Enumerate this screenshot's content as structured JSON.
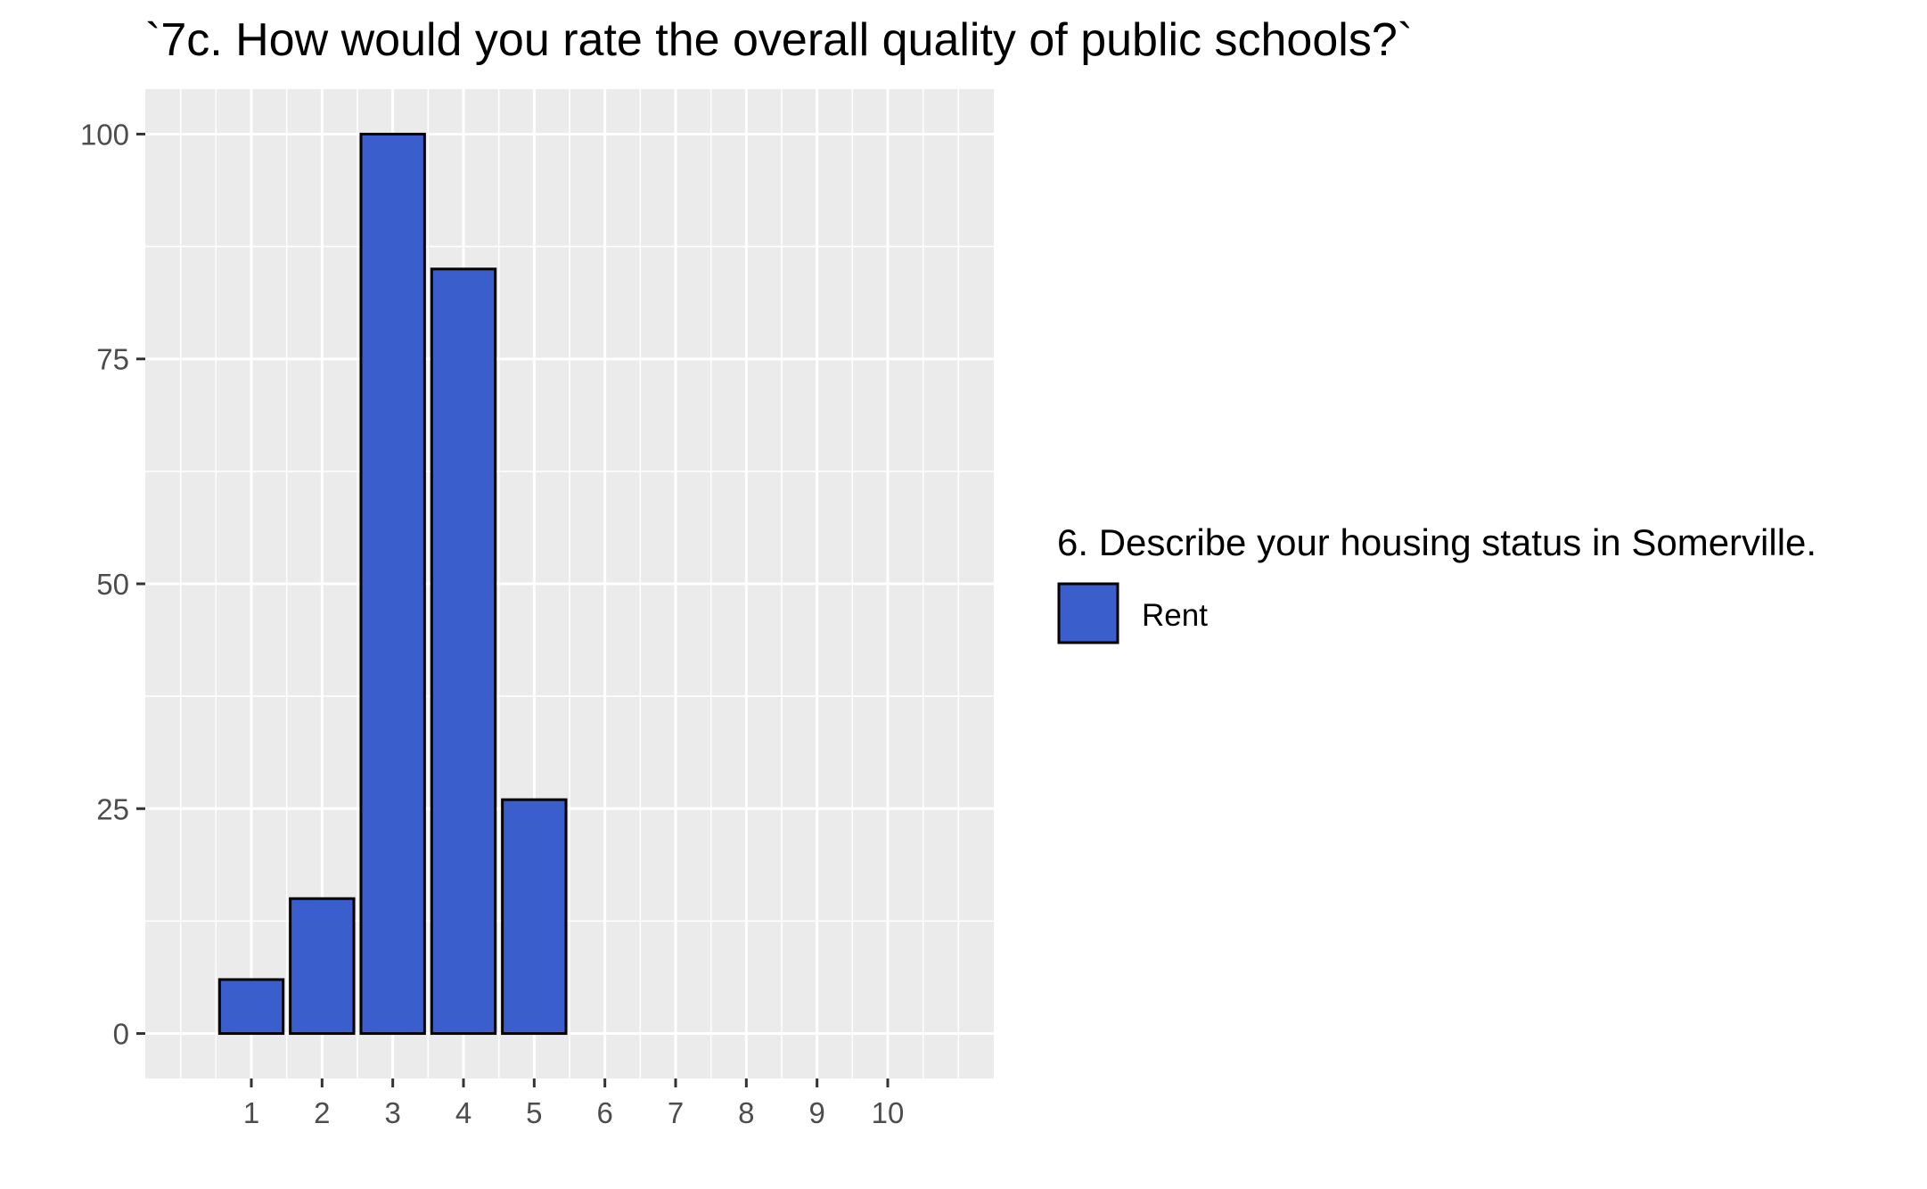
{
  "chart_data": {
    "type": "bar",
    "title": "`7c. How would you rate the overall quality of public schools?`",
    "xlabel": "",
    "ylabel": "",
    "x_ticks": [
      1,
      2,
      3,
      4,
      5,
      6,
      7,
      8,
      9,
      10
    ],
    "y_ticks": [
      0,
      25,
      50,
      75,
      100
    ],
    "xlim": [
      -0.5,
      11.5
    ],
    "ylim": [
      -5,
      105
    ],
    "grid": true,
    "legend_position": "right",
    "series": [
      {
        "name": "Rent",
        "color": "#3a5fcd",
        "categories": [
          1,
          2,
          3,
          4,
          5
        ],
        "values": [
          6,
          15,
          100,
          85,
          26
        ]
      }
    ],
    "legend": {
      "title": "6. Describe your housing status in Somerville.",
      "entries": [
        "Rent"
      ]
    },
    "colors": {
      "panel_background": "#ebebeb",
      "grid": "#ffffff",
      "bar_fill": "#3a5fcd",
      "bar_outline": "#000000"
    }
  }
}
